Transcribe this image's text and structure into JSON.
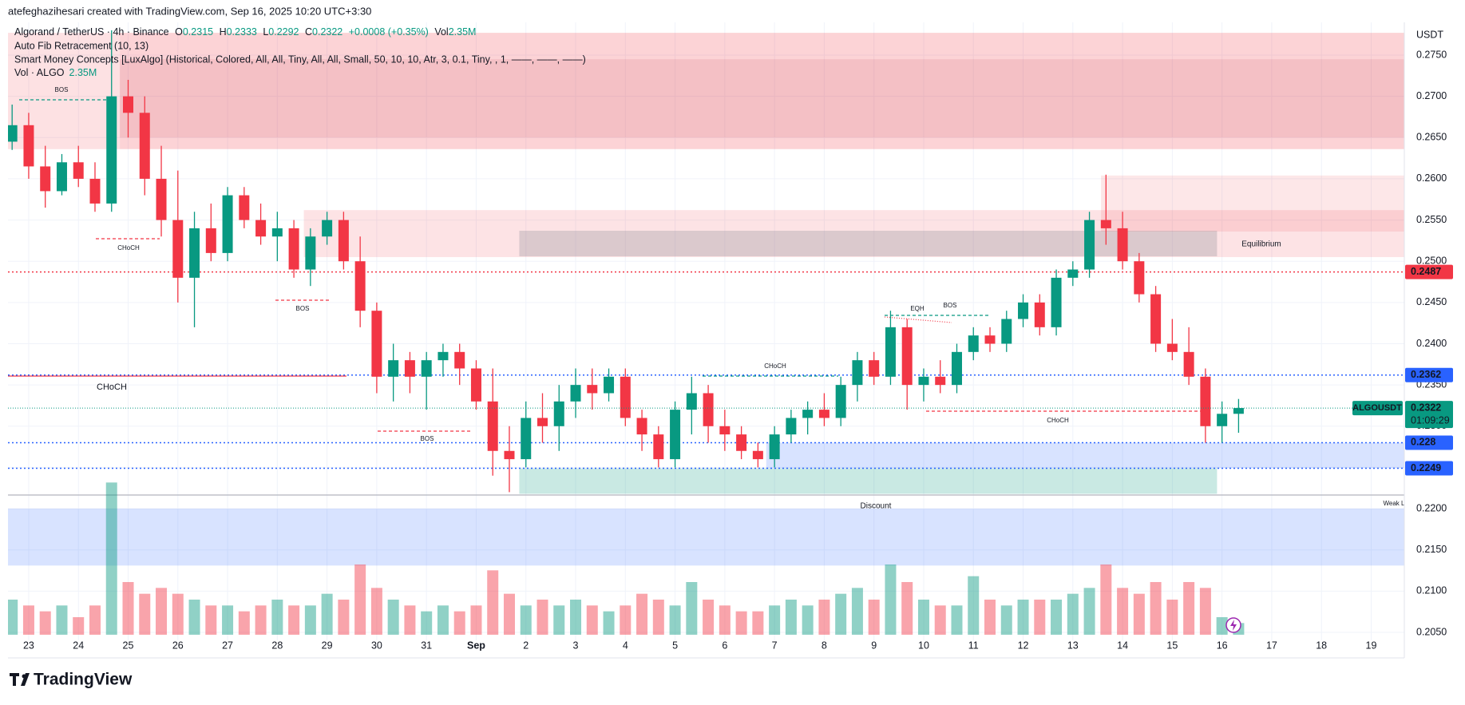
{
  "header": "atefeghazihesari created with TradingView.com, Sep 16, 2025 10:20 UTC+3:30",
  "footer": "TradingView",
  "chart_data": {
    "type": "candlestick",
    "legend": {
      "symbol": "Algorand / TetherUS · 4h · Binance",
      "o_label": "O",
      "o": "0.2315",
      "h_label": "H",
      "h": "0.2333",
      "l_label": "L",
      "l": "0.2292",
      "c_label": "C",
      "c": "0.2322",
      "change": "+0.0008 (+0.35%)",
      "vol_label": "Vol",
      "vol": "2.35M",
      "indicators": [
        "Auto Fib Retracement (10, 13)",
        "Smart Money Concepts [LuxAlgo] (Historical, Colored, All, All, Tiny, All, All, Small, 50, 10, 10, Atr, 3, 0.1, Tiny, , 1, ——, ——, ——)"
      ],
      "volume_name": "Vol · ALGO",
      "volume_value": "2.35M"
    },
    "currency": "USDT",
    "up_color": "#089981",
    "down_color": "#f23645",
    "candles": [
      [
        0.2645,
        0.269,
        0.2635,
        0.2665
      ],
      [
        0.2665,
        0.268,
        0.26,
        0.2615
      ],
      [
        0.2615,
        0.264,
        0.2565,
        0.2585
      ],
      [
        0.2585,
        0.263,
        0.258,
        0.262
      ],
      [
        0.262,
        0.264,
        0.259,
        0.26
      ],
      [
        0.26,
        0.262,
        0.256,
        0.257
      ],
      [
        0.257,
        0.278,
        0.256,
        0.27
      ],
      [
        0.27,
        0.272,
        0.265,
        0.268
      ],
      [
        0.268,
        0.27,
        0.258,
        0.26
      ],
      [
        0.26,
        0.264,
        0.253,
        0.255
      ],
      [
        0.255,
        0.261,
        0.245,
        0.248
      ],
      [
        0.248,
        0.256,
        0.242,
        0.254
      ],
      [
        0.254,
        0.257,
        0.25,
        0.251
      ],
      [
        0.251,
        0.259,
        0.25,
        0.258
      ],
      [
        0.258,
        0.259,
        0.254,
        0.255
      ],
      [
        0.255,
        0.257,
        0.252,
        0.253
      ],
      [
        0.253,
        0.256,
        0.25,
        0.254
      ],
      [
        0.254,
        0.255,
        0.248,
        0.249
      ],
      [
        0.249,
        0.254,
        0.247,
        0.253
      ],
      [
        0.253,
        0.256,
        0.252,
        0.255
      ],
      [
        0.255,
        0.256,
        0.249,
        0.25
      ],
      [
        0.25,
        0.253,
        0.242,
        0.244
      ],
      [
        0.244,
        0.245,
        0.234,
        0.236
      ],
      [
        0.236,
        0.24,
        0.233,
        0.238
      ],
      [
        0.238,
        0.239,
        0.234,
        0.236
      ],
      [
        0.236,
        0.239,
        0.232,
        0.238
      ],
      [
        0.238,
        0.24,
        0.236,
        0.239
      ],
      [
        0.239,
        0.24,
        0.235,
        0.237
      ],
      [
        0.237,
        0.238,
        0.232,
        0.233
      ],
      [
        0.233,
        0.237,
        0.224,
        0.227
      ],
      [
        0.227,
        0.23,
        0.222,
        0.226
      ],
      [
        0.226,
        0.233,
        0.225,
        0.231
      ],
      [
        0.231,
        0.234,
        0.228,
        0.23
      ],
      [
        0.23,
        0.235,
        0.227,
        0.233
      ],
      [
        0.233,
        0.237,
        0.231,
        0.235
      ],
      [
        0.235,
        0.237,
        0.232,
        0.234
      ],
      [
        0.234,
        0.237,
        0.233,
        0.236
      ],
      [
        0.236,
        0.237,
        0.23,
        0.231
      ],
      [
        0.231,
        0.232,
        0.227,
        0.229
      ],
      [
        0.229,
        0.23,
        0.225,
        0.226
      ],
      [
        0.226,
        0.233,
        0.225,
        0.232
      ],
      [
        0.232,
        0.236,
        0.229,
        0.234
      ],
      [
        0.234,
        0.235,
        0.228,
        0.23
      ],
      [
        0.23,
        0.232,
        0.227,
        0.229
      ],
      [
        0.229,
        0.23,
        0.226,
        0.227
      ],
      [
        0.227,
        0.228,
        0.225,
        0.226
      ],
      [
        0.226,
        0.23,
        0.225,
        0.229
      ],
      [
        0.229,
        0.232,
        0.228,
        0.231
      ],
      [
        0.231,
        0.233,
        0.229,
        0.232
      ],
      [
        0.232,
        0.234,
        0.23,
        0.231
      ],
      [
        0.231,
        0.236,
        0.23,
        0.235
      ],
      [
        0.235,
        0.239,
        0.233,
        0.238
      ],
      [
        0.238,
        0.239,
        0.235,
        0.236
      ],
      [
        0.236,
        0.244,
        0.235,
        0.242
      ],
      [
        0.242,
        0.243,
        0.232,
        0.235
      ],
      [
        0.235,
        0.237,
        0.233,
        0.236
      ],
      [
        0.236,
        0.238,
        0.234,
        0.235
      ],
      [
        0.235,
        0.24,
        0.234,
        0.239
      ],
      [
        0.239,
        0.242,
        0.238,
        0.241
      ],
      [
        0.241,
        0.242,
        0.239,
        0.24
      ],
      [
        0.24,
        0.244,
        0.239,
        0.243
      ],
      [
        0.243,
        0.246,
        0.242,
        0.245
      ],
      [
        0.245,
        0.246,
        0.241,
        0.242
      ],
      [
        0.242,
        0.249,
        0.241,
        0.248
      ],
      [
        0.248,
        0.25,
        0.247,
        0.249
      ],
      [
        0.249,
        0.256,
        0.248,
        0.255
      ],
      [
        0.255,
        0.2605,
        0.252,
        0.254
      ],
      [
        0.254,
        0.256,
        0.249,
        0.25
      ],
      [
        0.25,
        0.251,
        0.245,
        0.246
      ],
      [
        0.246,
        0.247,
        0.239,
        0.24
      ],
      [
        0.24,
        0.243,
        0.238,
        0.239
      ],
      [
        0.239,
        0.242,
        0.235,
        0.236
      ],
      [
        0.236,
        0.237,
        0.228,
        0.23
      ],
      [
        0.23,
        0.233,
        0.228,
        0.2315
      ],
      [
        0.2315,
        0.2333,
        0.2292,
        0.2322
      ]
    ],
    "volume": [
      6,
      5,
      4,
      5,
      3,
      5,
      26,
      9,
      7,
      8,
      7,
      6,
      5,
      5,
      4,
      5,
      6,
      5,
      5,
      7,
      6,
      12,
      8,
      6,
      5,
      4,
      5,
      4,
      5,
      11,
      7,
      5,
      6,
      5,
      6,
      5,
      4,
      5,
      7,
      6,
      5,
      9,
      6,
      5,
      4,
      4,
      5,
      6,
      5,
      6,
      7,
      8,
      6,
      12,
      9,
      6,
      5,
      5,
      10,
      6,
      5,
      6,
      6,
      6,
      7,
      8,
      12,
      8,
      7,
      9,
      6,
      9,
      8,
      3,
      2
    ],
    "vol_ylim": [
      0,
      30
    ],
    "xlim": [
      -0.25,
      84
    ],
    "xticks": [
      {
        "value": 1,
        "label": "23"
      },
      {
        "value": 4,
        "label": "24"
      },
      {
        "value": 7,
        "label": "25"
      },
      {
        "value": 10,
        "label": "26"
      },
      {
        "value": 13,
        "label": "27"
      },
      {
        "value": 16,
        "label": "28"
      },
      {
        "value": 19,
        "label": "29"
      },
      {
        "value": 22,
        "label": "30"
      },
      {
        "value": 25,
        "label": "31"
      },
      {
        "value": 28,
        "label": "Sep"
      },
      {
        "value": 31,
        "label": "2"
      },
      {
        "value": 34,
        "label": "3"
      },
      {
        "value": 37,
        "label": "4"
      },
      {
        "value": 40,
        "label": "5"
      },
      {
        "value": 43,
        "label": "6"
      },
      {
        "value": 46,
        "label": "7"
      },
      {
        "value": 49,
        "label": "8"
      },
      {
        "value": 52,
        "label": "9"
      },
      {
        "value": 55,
        "label": "10"
      },
      {
        "value": 58,
        "label": "11"
      },
      {
        "value": 61,
        "label": "12"
      },
      {
        "value": 64,
        "label": "13"
      },
      {
        "value": 67,
        "label": "14"
      },
      {
        "value": 70,
        "label": "15"
      },
      {
        "value": 73,
        "label": "16"
      },
      {
        "value": 76,
        "label": "17"
      },
      {
        "value": 79,
        "label": "18"
      },
      {
        "value": 82,
        "label": "19"
      }
    ],
    "ylim": [
      0.205,
      0.275
    ],
    "yticks": [
      {
        "value": 0.205,
        "label": "0.2050"
      },
      {
        "value": 0.21,
        "label": "0.2100"
      },
      {
        "value": 0.215,
        "label": "0.2150"
      },
      {
        "value": 0.22,
        "label": "0.2200"
      },
      {
        "value": 0.225,
        "label": "0.2250"
      },
      {
        "value": 0.23,
        "label": "0.2300"
      },
      {
        "value": 0.235,
        "label": "0.2350"
      },
      {
        "value": 0.24,
        "label": "0.2400"
      },
      {
        "value": 0.245,
        "label": "0.2450"
      },
      {
        "value": 0.25,
        "label": "0.2500"
      },
      {
        "value": 0.255,
        "label": "0.2550"
      },
      {
        "value": 0.26,
        "label": "0.2600"
      },
      {
        "value": 0.265,
        "label": "0.2650"
      },
      {
        "value": 0.27,
        "label": "0.2700"
      },
      {
        "value": 0.275,
        "label": "0.2750"
      }
    ],
    "grid": true,
    "zones": [
      {
        "from": -0.25,
        "to": 6.5,
        "top": 0.2777,
        "bottom": 0.2636,
        "color": "rgba(242,54,69,0.15)"
      },
      {
        "from": 6.5,
        "to": 84,
        "top": 0.2777,
        "bottom": 0.2636,
        "color": "rgba(242,54,69,0.22)"
      },
      {
        "from": 6.5,
        "to": 84,
        "top": 0.2745,
        "bottom": 0.265,
        "color": "rgba(190,60,70,0.12)"
      },
      {
        "from": 17.6,
        "to": 84,
        "top": 0.2562,
        "bottom": 0.2505,
        "color": "rgba(242,54,69,0.14)"
      },
      {
        "from": 65.7,
        "to": 84,
        "top": 0.2604,
        "bottom": 0.2536,
        "color": "rgba(242,54,69,0.12)"
      },
      {
        "from": 30.6,
        "to": 72.7,
        "top": 0.2537,
        "bottom": 0.2506,
        "color": "rgba(120,123,134,0.25)"
      },
      {
        "from": 30.6,
        "to": 72.7,
        "top": 0.2249,
        "bottom": 0.2218,
        "color": "rgba(8,153,129,0.22)"
      },
      {
        "from": 45.5,
        "to": 84,
        "top": 0.228,
        "bottom": 0.2249,
        "color": "rgba(41,98,255,0.18)"
      },
      {
        "from": -0.25,
        "to": 84,
        "top": 0.22,
        "bottom": 0.2131,
        "color": "rgba(41,98,255,0.18)"
      }
    ],
    "levels": [
      {
        "value": 0.2487,
        "color": "#f23645"
      },
      {
        "value": 0.2362,
        "color": "#2962ff"
      },
      {
        "value": 0.228,
        "color": "#2962ff"
      },
      {
        "value": 0.2249,
        "color": "#2962ff"
      }
    ],
    "last": {
      "value": 0.2322,
      "symbol": "ALGOUSDT",
      "countdown": "01:09:29",
      "color": "#089981"
    },
    "annotations": [
      "BOS",
      "CHoCH",
      "BOS",
      "CHoCH",
      "BOS",
      "CHoCH",
      "EQH",
      "BOS",
      "CHoCH",
      "Equilibrium",
      "Discount",
      "Weak L"
    ]
  }
}
